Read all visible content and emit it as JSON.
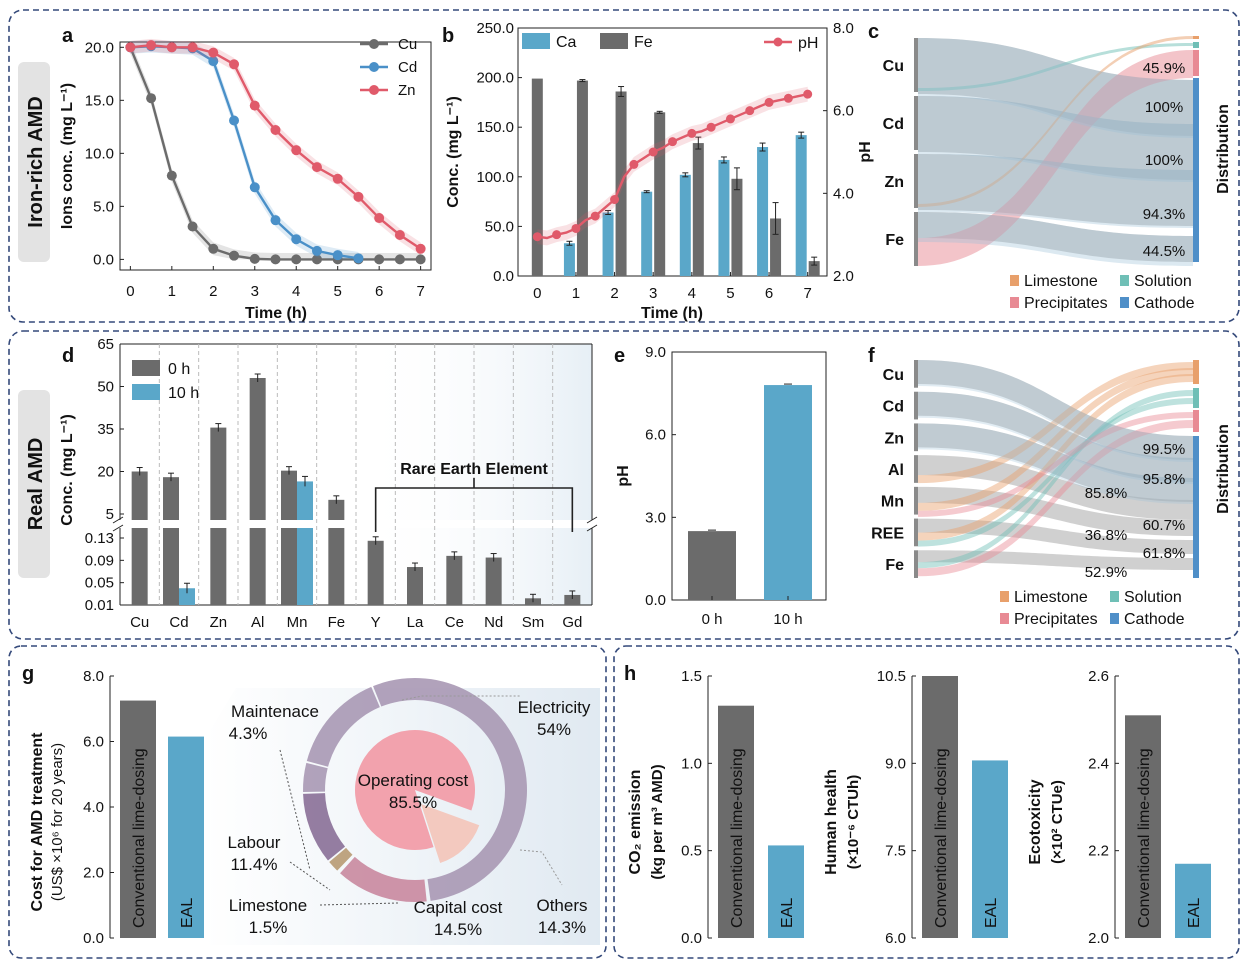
{
  "colors": {
    "dark": "#6b6b6b",
    "blue": "#5aa7c9",
    "red": "#e05a6a",
    "cu": "#6b6b6b",
    "cd": "#4a90c8",
    "zn": "#e05a6a",
    "border": "#34497a",
    "limestone": "#e8a06b",
    "solution": "#6fbfb6",
    "precip": "#e88a94",
    "cathode": "#4f8fc8",
    "pie_op": "#f2a2ad",
    "pie_cap": "#f3c9bf",
    "ring_elec": "#a898b4",
    "ring_other": "#c9889f",
    "ring_maint": "#a898b4",
    "ring_labour": "#8a6f97",
    "ring_lime": "#b89a73"
  },
  "row_labels": {
    "top": "Iron-rich AMD",
    "mid": "Real AMD"
  },
  "panel_letters": {
    "a": "a",
    "b": "b",
    "c": "c",
    "d": "d",
    "e": "e",
    "f": "f",
    "g": "g",
    "h": "h"
  },
  "chart_data": [
    {
      "panel": "a",
      "type": "line",
      "xlabel": "Time (h)",
      "ylabel": "Ions conc. (mg L⁻¹)",
      "xlim": [
        -0.25,
        7.25
      ],
      "ylim": [
        -1,
        20.5
      ],
      "xticks": [
        0,
        1,
        2,
        3,
        4,
        5,
        6,
        7
      ],
      "yticks": [
        0,
        5,
        10,
        15,
        20
      ],
      "ytick_labels": [
        "0.0",
        "5.0",
        "10.0",
        "15.0",
        "20.0"
      ],
      "series": [
        {
          "name": "Cu",
          "x": [
            0,
            0.5,
            1,
            1.5,
            2,
            2.5,
            3,
            3.5,
            4,
            4.5,
            5,
            5.5,
            6,
            6.5,
            7
          ],
          "y": [
            20,
            15.2,
            7.9,
            3.1,
            1.0,
            0.35,
            0.05,
            0,
            0,
            0,
            0,
            0,
            0,
            0,
            0
          ]
        },
        {
          "name": "Cd",
          "x": [
            0,
            0.5,
            1,
            1.5,
            2,
            2.5,
            3,
            3.5,
            4,
            4.5,
            5,
            5.5
          ],
          "y": [
            20,
            20.1,
            20,
            19.9,
            18.7,
            13.1,
            6.8,
            3.7,
            1.9,
            0.8,
            0.4,
            0.1
          ]
        },
        {
          "name": "Zn",
          "x": [
            0,
            0.5,
            1,
            1.5,
            2,
            2.5,
            3,
            3.5,
            4,
            4.5,
            5,
            5.5,
            6,
            6.5,
            7
          ],
          "y": [
            20,
            20.2,
            20,
            20,
            19.5,
            18.4,
            14.5,
            12.2,
            10.3,
            8.7,
            7.6,
            5.9,
            3.9,
            2.3,
            1.0
          ]
        }
      ]
    },
    {
      "panel": "b",
      "type": "bar+line",
      "xlabel": "Time (h)",
      "ylabel": "Conc. (mg L⁻¹)",
      "y2label": "pH",
      "xlim": [
        -0.5,
        7.5
      ],
      "ylim": [
        0,
        250
      ],
      "y2lim": [
        2.0,
        8.0
      ],
      "xticks": [
        0,
        1,
        2,
        3,
        4,
        5,
        6,
        7
      ],
      "yticks": [
        0,
        50,
        100,
        150,
        200,
        250
      ],
      "ytick_labels": [
        "0.0",
        "50.0",
        "100.0",
        "150.0",
        "200.0",
        "250.0"
      ],
      "y2ticks": [
        2,
        4,
        6,
        8
      ],
      "y2tick_labels": [
        "2.0",
        "4.0",
        "6.0",
        "8.0"
      ],
      "categories": [
        0,
        1,
        2,
        3,
        4,
        5,
        6,
        7
      ],
      "series": [
        {
          "name": "Ca",
          "values": [
            null,
            33,
            64,
            85,
            102,
            117,
            130,
            142
          ],
          "err": [
            0,
            2,
            2,
            1,
            2,
            3,
            4,
            3
          ]
        },
        {
          "name": "Fe",
          "values": [
            199,
            197,
            186,
            165,
            134,
            98,
            58,
            15
          ],
          "err": [
            0,
            1,
            5,
            1,
            6,
            11,
            16,
            4
          ]
        }
      ],
      "line": {
        "name": "pH",
        "x": [
          0,
          0.25,
          0.5,
          0.75,
          1,
          1.25,
          1.5,
          1.75,
          2,
          2.25,
          2.5,
          2.75,
          3,
          3.25,
          3.5,
          3.75,
          4,
          4.25,
          4.5,
          4.75,
          5,
          5.25,
          5.5,
          5.75,
          6,
          6.25,
          6.5,
          6.75,
          7
        ],
        "y": [
          2.95,
          2.92,
          3.0,
          3.05,
          3.15,
          3.35,
          3.45,
          3.65,
          3.85,
          4.4,
          4.7,
          4.85,
          5.0,
          5.1,
          5.25,
          5.35,
          5.45,
          5.5,
          5.6,
          5.7,
          5.8,
          5.9,
          6.0,
          6.1,
          6.2,
          6.25,
          6.3,
          6.35,
          6.4
        ]
      }
    },
    {
      "panel": "c",
      "type": "sankey",
      "sources": [
        "Cu",
        "Cd",
        "Zn",
        "Fe"
      ],
      "labels": [
        "45.9%",
        "100%",
        "100%",
        "94.3%",
        "44.5%"
      ],
      "right_label": "Distribution",
      "legend": [
        "Limestone",
        "Solution",
        "Precipitates",
        "Cathode"
      ]
    },
    {
      "panel": "d",
      "type": "bar",
      "ylabel": "Conc. (mg L⁻¹)",
      "categories": [
        "Cu",
        "Cd",
        "Zn",
        "Al",
        "Mn",
        "Fe",
        "Y",
        "La",
        "Ce",
        "Nd",
        "Sm",
        "Gd"
      ],
      "yticks_upper": [
        "5",
        "20",
        "35",
        "50",
        "65"
      ],
      "yticks_lower": [
        "0.01",
        "0.05",
        "0.09",
        "0.13"
      ],
      "series": [
        {
          "name": "0 h",
          "values": [
            20,
            18,
            35.5,
            53,
            20.3,
            10.0,
            0.125,
            0.078,
            0.098,
            0.095,
            0.022,
            0.028
          ]
        },
        {
          "name": "10 h",
          "values": [
            null,
            0.04,
            null,
            null,
            16.5,
            null,
            null,
            null,
            null,
            null,
            null,
            null
          ]
        }
      ],
      "annotation": "Rare Earth Element"
    },
    {
      "panel": "e",
      "type": "bar",
      "ylabel": "pH",
      "categories": [
        "0 h",
        "10 h"
      ],
      "values": [
        2.5,
        7.8
      ],
      "ylim": [
        0,
        9
      ],
      "yticks": [
        "0.0",
        "3.0",
        "6.0",
        "9.0"
      ]
    },
    {
      "panel": "f",
      "type": "sankey",
      "sources": [
        "Cu",
        "Cd",
        "Zn",
        "Al",
        "Mn",
        "REE",
        "Fe"
      ],
      "labels": [
        "99.5%",
        "95.8%",
        "85.8%",
        "60.7%",
        "36.8%",
        "61.8%",
        "52.9%"
      ],
      "right_label": "Distribution",
      "legend": [
        "Limestone",
        "Solution",
        "Precipitates",
        "Cathode"
      ]
    },
    {
      "panel": "g",
      "type": "bar+donut",
      "ylabel": "Cost for AMD treatment",
      "ylabel2": "(US$ ×10⁶ for 20 years)",
      "ylim": [
        0,
        8
      ],
      "yticks": [
        "0.0",
        "2.0",
        "4.0",
        "6.0",
        "8.0"
      ],
      "categories": [
        "Conventional  lime-dosing",
        "EAL"
      ],
      "values": [
        7.25,
        6.15
      ],
      "pie": [
        {
          "name": "Operating cost",
          "value": "85.5%"
        },
        {
          "name": "Capital cost",
          "value": "14.5%"
        }
      ],
      "ring": [
        {
          "name": "Electricity",
          "value": "54%"
        },
        {
          "name": "Others",
          "value": "14.3%"
        },
        {
          "name": "Maintenace",
          "value": "4.3%"
        },
        {
          "name": "Labour",
          "value": "11.4%"
        },
        {
          "name": "Limestone",
          "value": "1.5%"
        }
      ]
    },
    {
      "panel": "h",
      "type": "bar",
      "sub": [
        {
          "ylabel": "CO₂ emission",
          "ylabel2": "(kg per m³ AMD)",
          "ylim": [
            0,
            1.5
          ],
          "yticks": [
            "0.0",
            "0.5",
            "1.0",
            "1.5"
          ],
          "categories": [
            "Conventional  lime-dosing",
            "EAL"
          ],
          "values": [
            1.33,
            0.53
          ]
        },
        {
          "ylabel": "Human health",
          "ylabel2": "(×10⁻⁶ CTUh)",
          "ylim": [
            6,
            10.5
          ],
          "yticks": [
            "6.0",
            "7.5",
            "9.0",
            "10.5"
          ],
          "categories": [
            "Conventional  lime-dosing",
            "EAL"
          ],
          "values": [
            10.5,
            9.05
          ]
        },
        {
          "ylabel": "Ecotoxicity",
          "ylabel2": "(×10² CTUe)",
          "ylim": [
            2.0,
            2.6
          ],
          "yticks": [
            "2.0",
            "2.2",
            "2.4",
            "2.6"
          ],
          "categories": [
            "Conventional  lime-dosing",
            "EAL"
          ],
          "values": [
            2.51,
            2.17
          ]
        }
      ]
    }
  ]
}
